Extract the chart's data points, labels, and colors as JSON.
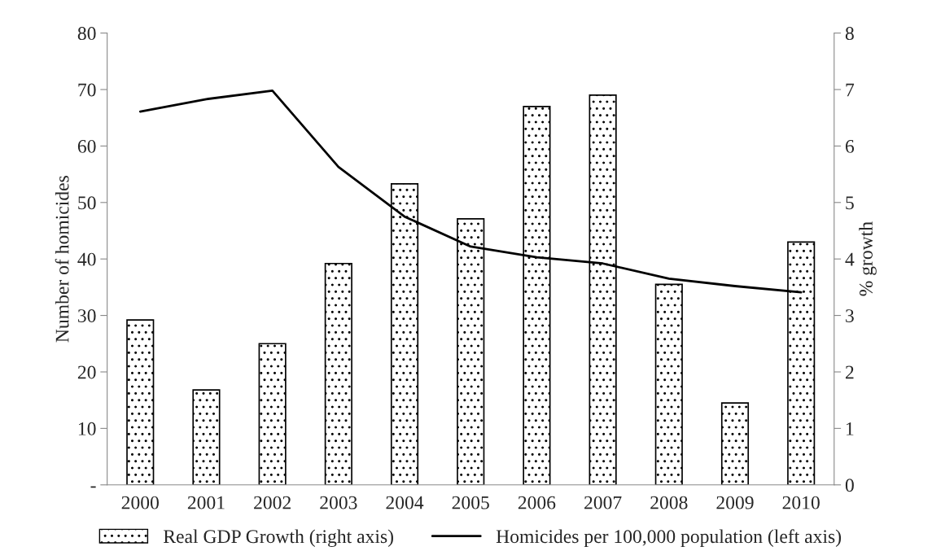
{
  "chart_data": {
    "type": "bar",
    "ylabel": "Number of homicides",
    "y2label": "% growth",
    "categories": [
      "2000",
      "2001",
      "2002",
      "2003",
      "2004",
      "2005",
      "2006",
      "2007",
      "2008",
      "2009",
      "2010"
    ],
    "series": [
      {
        "name": "Real GDP Growth (right axis)",
        "axis": "y2",
        "color": "#000000",
        "values": [
          2.92,
          1.68,
          2.5,
          3.92,
          5.33,
          4.71,
          6.7,
          6.9,
          3.55,
          1.45,
          4.3
        ]
      },
      {
        "name": "Homicides per 100,000 population (left axis)",
        "type": "line",
        "color": "#000000",
        "values": [
          66.1,
          68.3,
          69.8,
          56.3,
          47.5,
          42.2,
          40.3,
          39.2,
          36.5,
          35.2,
          34.1
        ]
      }
    ],
    "ylim": [
      0,
      80
    ],
    "yticks": [
      {
        "value": 0,
        "label": "-"
      },
      10,
      20,
      30,
      40,
      50,
      60,
      70,
      80
    ],
    "y2lim": [
      0,
      8
    ],
    "y2ticks": [
      0,
      1,
      2,
      3,
      4,
      5,
      6,
      7,
      8
    ],
    "grid": false,
    "legend": "bottom",
    "marker": "none",
    "line_style": "solid"
  }
}
